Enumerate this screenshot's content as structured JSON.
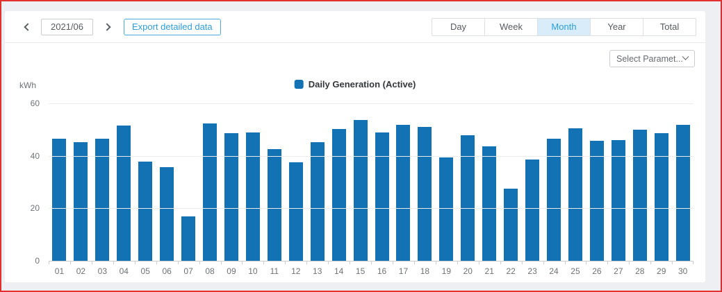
{
  "page": {
    "frame_color": "#e1302e",
    "background_color": "#edeff2"
  },
  "toolbar": {
    "date_value": "2021/06",
    "export_label": "Export detailed data",
    "tabs": [
      {
        "label": "Day",
        "active": false
      },
      {
        "label": "Week",
        "active": false
      },
      {
        "label": "Month",
        "active": true
      },
      {
        "label": "Year",
        "active": false
      },
      {
        "label": "Total",
        "active": false
      }
    ]
  },
  "chart": {
    "unit_label": "kWh",
    "parameter_dropdown_value": "Select Paramet...",
    "legend_label": "Daily Generation (Active)"
  },
  "chart_data": {
    "type": "bar",
    "title": "Daily Generation (Active)",
    "xlabel": "",
    "ylabel": "kWh",
    "ylim": [
      0,
      60
    ],
    "yticks": [
      0,
      20,
      40,
      60
    ],
    "grid": true,
    "legend_position": "top-center",
    "bar_color": "#1272b4",
    "categories": [
      "01",
      "02",
      "03",
      "04",
      "05",
      "06",
      "07",
      "08",
      "09",
      "10",
      "11",
      "12",
      "13",
      "14",
      "15",
      "16",
      "17",
      "18",
      "19",
      "20",
      "21",
      "22",
      "23",
      "24",
      "25",
      "26",
      "27",
      "28",
      "29",
      "30"
    ],
    "values": [
      46.4,
      45.2,
      46.4,
      51.6,
      37.8,
      35.7,
      16.8,
      52.3,
      48.7,
      48.9,
      42.5,
      37.6,
      45.3,
      50.1,
      53.7,
      48.9,
      51.9,
      51.1,
      39.4,
      47.8,
      43.5,
      27.5,
      38.6,
      46.4,
      50.6,
      45.7,
      45.9,
      49.9,
      48.7,
      51.8
    ]
  }
}
